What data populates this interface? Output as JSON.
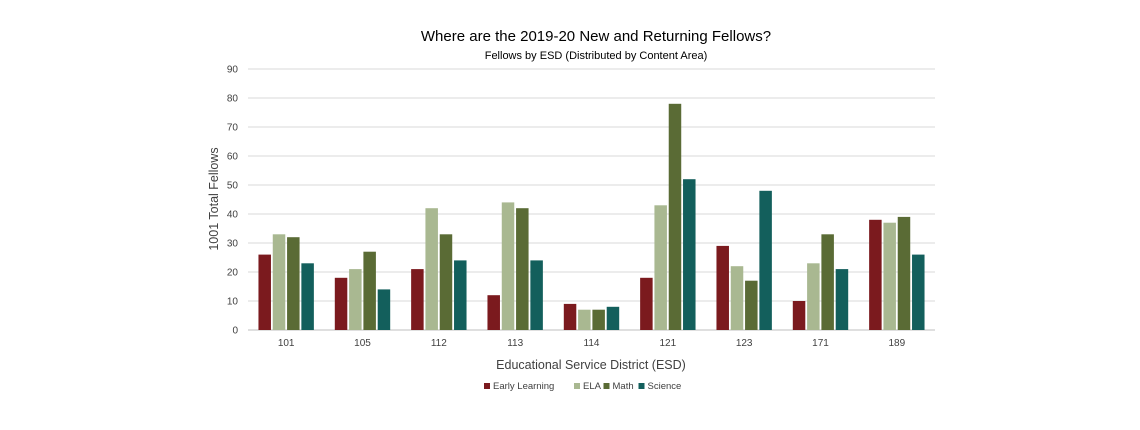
{
  "chart_data": {
    "type": "bar",
    "title": "Where are the 2019-20 New and Returning Fellows?",
    "subtitle": "Fellows by ESD (Distributed by Content Area)",
    "xlabel": "Educational Service District (ESD)",
    "ylabel": "1001 Total Fellows",
    "ylim": [
      0,
      90
    ],
    "yticks": [
      0,
      10,
      20,
      30,
      40,
      50,
      60,
      70,
      80,
      90
    ],
    "grid": true,
    "legend_position": "bottom",
    "categories": [
      "101",
      "105",
      "112",
      "113",
      "114",
      "121",
      "123",
      "171",
      "189"
    ],
    "series": [
      {
        "name": "Early Learning",
        "color": "#7b1a1e",
        "values": [
          26,
          18,
          21,
          12,
          9,
          18,
          29,
          10,
          38
        ]
      },
      {
        "name": "ELA",
        "color": "#a9b891",
        "values": [
          33,
          21,
          42,
          44,
          7,
          43,
          22,
          23,
          37
        ]
      },
      {
        "name": "Math",
        "color": "#5a6b35",
        "values": [
          32,
          27,
          33,
          42,
          7,
          78,
          17,
          33,
          39
        ]
      },
      {
        "name": "Science",
        "color": "#135f5c",
        "values": [
          23,
          14,
          24,
          24,
          8,
          52,
          48,
          21,
          26
        ]
      }
    ]
  }
}
